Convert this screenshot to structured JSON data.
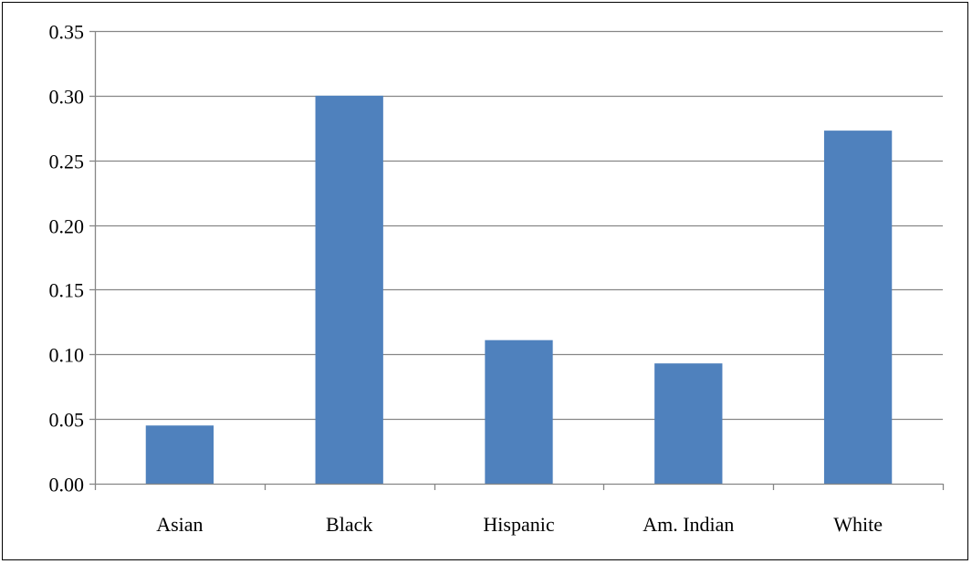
{
  "chart_data": {
    "type": "bar",
    "title": "",
    "xlabel": "",
    "ylabel": "",
    "categories": [
      "Asian",
      "Black",
      "Hispanic",
      "Am. Indian",
      "White"
    ],
    "values": [
      0.045,
      0.3,
      0.111,
      0.093,
      0.273
    ],
    "ylim": [
      0,
      0.35
    ],
    "yticks": [
      "0.00",
      "0.05",
      "0.10",
      "0.15",
      "0.20",
      "0.25",
      "0.30",
      "0.35"
    ],
    "grid": "horizontal",
    "legend": "none",
    "colors": {
      "bar": "#4F81BD",
      "grid": "#868686",
      "axis": "#868686",
      "text": "#000000"
    }
  }
}
